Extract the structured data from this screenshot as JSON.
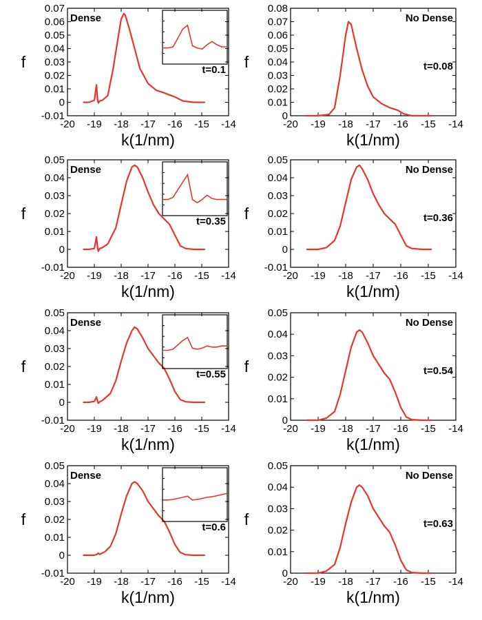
{
  "chart_data": [
    {
      "type": "line",
      "panel": "dense-t0.1",
      "xlabel": "k(1/nm)",
      "ylabel": "f",
      "xlim": [
        -20,
        -14
      ],
      "ylim": [
        -0.01,
        0.07
      ],
      "xticks": [
        -20,
        -19,
        -18,
        -17,
        -16,
        -15,
        -14
      ],
      "xtick_labels": [
        "-20",
        "-19",
        "-18",
        "-17",
        "-16",
        "-15",
        "-14"
      ],
      "yticks": [
        -0.01,
        0,
        0.01,
        0.02,
        0.03,
        0.04,
        0.05,
        0.06,
        0.07
      ],
      "ytick_labels": [
        "-0.01",
        "0",
        "0.01",
        "0.02",
        "0.03",
        "0.04",
        "0.05",
        "0.06",
        "0.07"
      ],
      "label": "Dense",
      "time_label": "t=0.1",
      "inset": true,
      "series": [
        {
          "name": "f",
          "x": [
            -19.4,
            -19.2,
            -19.0,
            -18.92,
            -18.88,
            -18.85,
            -18.8,
            -18.7,
            -18.5,
            -18.3,
            -18.1,
            -18.0,
            -17.9,
            -17.85,
            -17.7,
            -17.5,
            -17.3,
            -17.0,
            -16.7,
            -16.4,
            -16.2,
            -16.0,
            -15.7,
            -15.3,
            -14.9
          ],
          "y": [
            0,
            0,
            0.0015,
            0.013,
            0.002,
            -0.0005,
            0.001,
            0.0015,
            0.005,
            0.025,
            0.05,
            0.062,
            0.066,
            0.065,
            0.055,
            0.04,
            0.025,
            0.014,
            0.009,
            0.007,
            0.0055,
            0.004,
            0.001,
            0,
            0
          ]
        }
      ],
      "inset_y": [
        0.3,
        0.3,
        0.32,
        0.48,
        0.65,
        0.72,
        0.34,
        0.3,
        0.28,
        0.36,
        0.42,
        0.36,
        0.32,
        0.32
      ]
    },
    {
      "type": "line",
      "panel": "nodense-t0.08",
      "xlabel": "k(1/nm)",
      "ylabel": "f",
      "xlim": [
        -20,
        -14
      ],
      "ylim": [
        0,
        0.08
      ],
      "xticks": [
        -20,
        -19,
        -18,
        -17,
        -16,
        -15,
        -14
      ],
      "xtick_labels": [
        "-20",
        "-19",
        "-18",
        "-17",
        "-16",
        "-15",
        "-14"
      ],
      "yticks": [
        0,
        0.01,
        0.02,
        0.03,
        0.04,
        0.05,
        0.06,
        0.07,
        0.08
      ],
      "ytick_labels": [
        "0",
        "0.01",
        "0.02",
        "0.03",
        "0.04",
        "0.05",
        "0.06",
        "0.07",
        "0.08"
      ],
      "label": "No Dense",
      "time_label": "t=0.08",
      "inset": false,
      "series": [
        {
          "name": "f",
          "x": [
            -19.4,
            -19.0,
            -18.6,
            -18.4,
            -18.2,
            -18.0,
            -17.9,
            -17.8,
            -17.6,
            -17.4,
            -17.2,
            -17.0,
            -16.7,
            -16.4,
            -16.1,
            -15.9,
            -15.6,
            -15.2,
            -14.9
          ],
          "y": [
            0,
            0,
            0.001,
            0.006,
            0.03,
            0.06,
            0.07,
            0.068,
            0.05,
            0.034,
            0.022,
            0.014,
            0.009,
            0.006,
            0.004,
            0.0015,
            0,
            0,
            0
          ]
        }
      ]
    },
    {
      "type": "line",
      "panel": "dense-t0.35",
      "xlabel": "k(1/nm)",
      "ylabel": "f",
      "xlim": [
        -20,
        -14
      ],
      "ylim": [
        -0.01,
        0.05
      ],
      "xticks": [
        -20,
        -19,
        -18,
        -17,
        -16,
        -15,
        -14
      ],
      "xtick_labels": [
        "-20",
        "-19",
        "-18",
        "-17",
        "-16",
        "-15",
        "-14"
      ],
      "yticks": [
        -0.01,
        0,
        0.01,
        0.02,
        0.03,
        0.04,
        0.05
      ],
      "ytick_labels": [
        "-0.01",
        "0",
        "0.01",
        "0.02",
        "0.03",
        "0.04",
        "0.05"
      ],
      "label": "Dense",
      "time_label": "t=0.35",
      "inset": true,
      "series": [
        {
          "name": "f",
          "x": [
            -19.4,
            -19.2,
            -19.0,
            -18.92,
            -18.88,
            -18.85,
            -18.8,
            -18.7,
            -18.5,
            -18.2,
            -18.0,
            -17.8,
            -17.6,
            -17.5,
            -17.4,
            -17.2,
            -17.0,
            -16.8,
            -16.6,
            -16.4,
            -16.2,
            -16.0,
            -15.8,
            -15.6,
            -15.3,
            -14.9
          ],
          "y": [
            0,
            0,
            0.0005,
            0.007,
            0.001,
            -0.001,
            0.0005,
            0.001,
            0.003,
            0.012,
            0.025,
            0.038,
            0.046,
            0.047,
            0.046,
            0.04,
            0.032,
            0.025,
            0.02,
            0.017,
            0.014,
            0.008,
            0.002,
            0.0005,
            0,
            0
          ]
        }
      ],
      "inset_y": [
        0.3,
        0.3,
        0.34,
        0.48,
        0.62,
        0.76,
        0.3,
        0.24,
        0.3,
        0.38,
        0.32,
        0.3,
        0.3,
        0.3
      ]
    },
    {
      "type": "line",
      "panel": "nodense-t0.36",
      "xlabel": "k(1/nm)",
      "ylabel": "f",
      "xlim": [
        -20,
        -14
      ],
      "ylim": [
        -0.01,
        0.05
      ],
      "xticks": [
        -20,
        -19,
        -18,
        -17,
        -16,
        -15,
        -14
      ],
      "xtick_labels": [
        "-20",
        "-19",
        "-18",
        "-17",
        "-16",
        "-15",
        "-14"
      ],
      "yticks": [
        -0.01,
        0,
        0.01,
        0.02,
        0.03,
        0.04,
        0.05
      ],
      "ytick_labels": [
        "-0.01",
        "0",
        "0.01",
        "0.02",
        "0.03",
        "0.04",
        "0.05"
      ],
      "label": "No Dense",
      "time_label": "t=0.36",
      "inset": false,
      "series": [
        {
          "name": "f",
          "x": [
            -19.4,
            -19.0,
            -18.7,
            -18.4,
            -18.2,
            -18.0,
            -17.8,
            -17.6,
            -17.5,
            -17.4,
            -17.2,
            -17.0,
            -16.8,
            -16.6,
            -16.4,
            -16.2,
            -16.0,
            -15.8,
            -15.6,
            -15.2,
            -14.9
          ],
          "y": [
            0,
            0,
            0.001,
            0.005,
            0.013,
            0.026,
            0.039,
            0.046,
            0.047,
            0.045,
            0.039,
            0.031,
            0.025,
            0.02,
            0.017,
            0.014,
            0.008,
            0.002,
            0.0005,
            0,
            0
          ]
        }
      ]
    },
    {
      "type": "line",
      "panel": "dense-t0.55",
      "xlabel": "k(1/nm)",
      "ylabel": "f",
      "xlim": [
        -20,
        -14
      ],
      "ylim": [
        -0.01,
        0.05
      ],
      "xticks": [
        -20,
        -19,
        -18,
        -17,
        -16,
        -15,
        -14
      ],
      "xtick_labels": [
        "-20",
        "-19",
        "-18",
        "-17",
        "-16",
        "-15",
        "-14"
      ],
      "yticks": [
        -0.01,
        0,
        0.01,
        0.02,
        0.03,
        0.04,
        0.05
      ],
      "ytick_labels": [
        "-0.01",
        "0",
        "0.01",
        "0.02",
        "0.03",
        "0.04",
        "0.05"
      ],
      "label": "Dense",
      "time_label": "t=0.55",
      "inset": true,
      "series": [
        {
          "name": "f",
          "x": [
            -19.4,
            -19.2,
            -19.0,
            -18.92,
            -18.88,
            -18.85,
            -18.8,
            -18.7,
            -18.4,
            -18.2,
            -18.0,
            -17.8,
            -17.6,
            -17.5,
            -17.4,
            -17.2,
            -17.0,
            -16.8,
            -16.6,
            -16.4,
            -16.2,
            -16.0,
            -15.8,
            -15.6,
            -15.3,
            -14.9
          ],
          "y": [
            0,
            0,
            0.0005,
            0.003,
            0.0005,
            -0.0005,
            0.0003,
            0.001,
            0.005,
            0.012,
            0.023,
            0.033,
            0.04,
            0.042,
            0.041,
            0.036,
            0.03,
            0.026,
            0.022,
            0.019,
            0.013,
            0.006,
            0.0015,
            0.0003,
            0,
            0
          ]
        }
      ],
      "inset_y": [
        0.34,
        0.34,
        0.36,
        0.44,
        0.52,
        0.58,
        0.38,
        0.36,
        0.38,
        0.42,
        0.4,
        0.4,
        0.42,
        0.42
      ]
    },
    {
      "type": "line",
      "panel": "nodense-t0.54",
      "xlabel": "k(1/nm)",
      "ylabel": "f",
      "xlim": [
        -20,
        -14
      ],
      "ylim": [
        0,
        0.05
      ],
      "xticks": [
        -20,
        -19,
        -18,
        -17,
        -16,
        -15,
        -14
      ],
      "xtick_labels": [
        "-20",
        "-19",
        "-18",
        "-17",
        "-16",
        "-15",
        "-14"
      ],
      "yticks": [
        0,
        0.01,
        0.02,
        0.03,
        0.04,
        0.05
      ],
      "ytick_labels": [
        "0",
        "0.01",
        "0.02",
        "0.03",
        "0.04",
        "0.05"
      ],
      "label": "No Dense",
      "time_label": "t=0.54",
      "inset": false,
      "series": [
        {
          "name": "f",
          "x": [
            -19.4,
            -19.0,
            -18.7,
            -18.4,
            -18.2,
            -18.0,
            -17.8,
            -17.6,
            -17.5,
            -17.4,
            -17.2,
            -17.0,
            -16.8,
            -16.6,
            -16.4,
            -16.2,
            -16.0,
            -15.8,
            -15.6,
            -15.2,
            -14.9
          ],
          "y": [
            0,
            0,
            0.001,
            0.004,
            0.012,
            0.023,
            0.034,
            0.041,
            0.042,
            0.041,
            0.036,
            0.03,
            0.026,
            0.022,
            0.019,
            0.013,
            0.006,
            0.0015,
            0.0003,
            0,
            0
          ]
        }
      ]
    },
    {
      "type": "line",
      "panel": "dense-t0.6",
      "xlabel": "k(1/nm)",
      "ylabel": "f",
      "xlim": [
        -20,
        -14
      ],
      "ylim": [
        -0.01,
        0.05
      ],
      "xticks": [
        -20,
        -19,
        -18,
        -17,
        -16,
        -15,
        -14
      ],
      "xtick_labels": [
        "-20",
        "-19",
        "-18",
        "-17",
        "-16",
        "-15",
        "-14"
      ],
      "yticks": [
        -0.01,
        0,
        0.01,
        0.02,
        0.03,
        0.04,
        0.05
      ],
      "ytick_labels": [
        "-0.01",
        "0",
        "0.01",
        "0.02",
        "0.03",
        "0.04",
        "0.05"
      ],
      "label": "Dense",
      "time_label": "t=0.6",
      "inset": true,
      "series": [
        {
          "name": "f",
          "x": [
            -19.4,
            -19.0,
            -18.9,
            -18.85,
            -18.8,
            -18.6,
            -18.4,
            -18.2,
            -18.0,
            -17.8,
            -17.6,
            -17.5,
            -17.4,
            -17.2,
            -17.0,
            -16.8,
            -16.6,
            -16.4,
            -16.2,
            -16.0,
            -15.8,
            -15.6,
            -15.3,
            -14.9
          ],
          "y": [
            0,
            0,
            0.0005,
            0.0012,
            0.0005,
            0.002,
            0.005,
            0.012,
            0.023,
            0.033,
            0.04,
            0.041,
            0.04,
            0.036,
            0.03,
            0.026,
            0.022,
            0.019,
            0.013,
            0.006,
            0.0015,
            0.0003,
            0,
            0
          ]
        }
      ],
      "inset_y": [
        0.4,
        0.4,
        0.41,
        0.43,
        0.45,
        0.47,
        0.4,
        0.41,
        0.43,
        0.45,
        0.46,
        0.48,
        0.5,
        0.52
      ]
    },
    {
      "type": "line",
      "panel": "nodense-t0.63",
      "xlabel": "k(1/nm)",
      "ylabel": "f",
      "xlim": [
        -20,
        -14
      ],
      "ylim": [
        0,
        0.05
      ],
      "xticks": [
        -20,
        -19,
        -18,
        -17,
        -16,
        -15,
        -14
      ],
      "xtick_labels": [
        "-20",
        "-19",
        "-18",
        "-17",
        "-16",
        "-15",
        "-14"
      ],
      "yticks": [
        0,
        0.01,
        0.02,
        0.03,
        0.04,
        0.05
      ],
      "ytick_labels": [
        "0",
        "0.01",
        "0.02",
        "0.03",
        "0.04",
        "0.05"
      ],
      "label": "No Dense",
      "time_label": "t=0.63",
      "inset": false,
      "series": [
        {
          "name": "f",
          "x": [
            -19.4,
            -19.0,
            -18.7,
            -18.4,
            -18.2,
            -18.0,
            -17.8,
            -17.6,
            -17.5,
            -17.4,
            -17.2,
            -17.0,
            -16.8,
            -16.6,
            -16.4,
            -16.2,
            -16.0,
            -15.8,
            -15.6,
            -15.2,
            -14.9
          ],
          "y": [
            0,
            0,
            0.001,
            0.004,
            0.012,
            0.023,
            0.033,
            0.04,
            0.041,
            0.04,
            0.036,
            0.03,
            0.026,
            0.022,
            0.019,
            0.013,
            0.006,
            0.0015,
            0.0003,
            0,
            0
          ]
        }
      ]
    }
  ],
  "colors": {
    "curve": "#e8352c",
    "axes": "#000000"
  }
}
